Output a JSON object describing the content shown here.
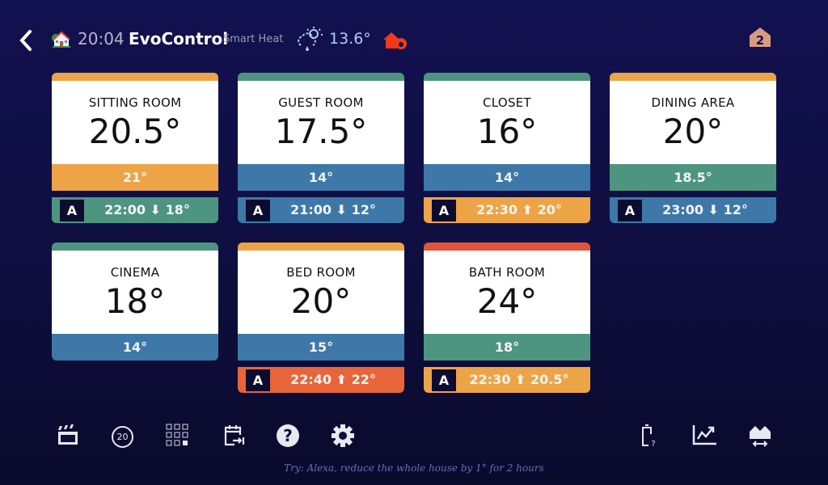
{
  "header": {
    "time": "20:04",
    "app_name": "EvoControl",
    "subtitle": "Smart Heat",
    "outside_temp": "13.6°",
    "level": "2"
  },
  "colors": {
    "orange": "#eda447",
    "teal": "#4e9580",
    "blue": "#3d78a8",
    "red": "#e8653a",
    "bath_top": "#e0553a"
  },
  "rooms": [
    {
      "name": "SITTING ROOM",
      "temp": "20.5°",
      "setpoint": "21°",
      "top": "#eda447",
      "set_color": "#eda447",
      "schedule": {
        "mode": "A",
        "text": "22:00 ⬇ 18°",
        "color": "#4e9580"
      }
    },
    {
      "name": "GUEST ROOM",
      "temp": "17.5°",
      "setpoint": "14°",
      "top": "#4e9580",
      "set_color": "#3d78a8",
      "schedule": {
        "mode": "A",
        "text": "21:00 ⬇ 12°",
        "color": "#3d78a8"
      }
    },
    {
      "name": "CLOSET",
      "temp": "16°",
      "setpoint": "14°",
      "top": "#4e9580",
      "set_color": "#3d78a8",
      "schedule": {
        "mode": "A",
        "text": "22:30 ⬆ 20°",
        "color": "#eda447"
      }
    },
    {
      "name": "DINING AREA",
      "temp": "20°",
      "setpoint": "18.5°",
      "top": "#eda447",
      "set_color": "#4e9580",
      "schedule": {
        "mode": "A",
        "text": "23:00 ⬇ 12°",
        "color": "#3d78a8"
      }
    },
    {
      "name": "CINEMA",
      "temp": "18°",
      "setpoint": "14°",
      "top": "#4e9580",
      "set_color": "#3d78a8"
    },
    {
      "name": "BED ROOM",
      "temp": "20°",
      "setpoint": "15°",
      "top": "#eda447",
      "set_color": "#3d78a8",
      "schedule": {
        "mode": "A",
        "text": "22:40 ⬆ 22°",
        "color": "#e8653a"
      }
    },
    {
      "name": "BATH ROOM",
      "temp": "24°",
      "setpoint": "18°",
      "top": "#e0553a",
      "set_color": "#4e9580",
      "schedule": {
        "mode": "A",
        "text": "22:30 ⬆ 20.5°",
        "color": "#eda447"
      }
    }
  ],
  "toolbar": {
    "quick_temp": "20",
    "battery_badge": "?"
  },
  "tip": "Try: Alexa, reduce the whole house by 1° for 2 hours"
}
